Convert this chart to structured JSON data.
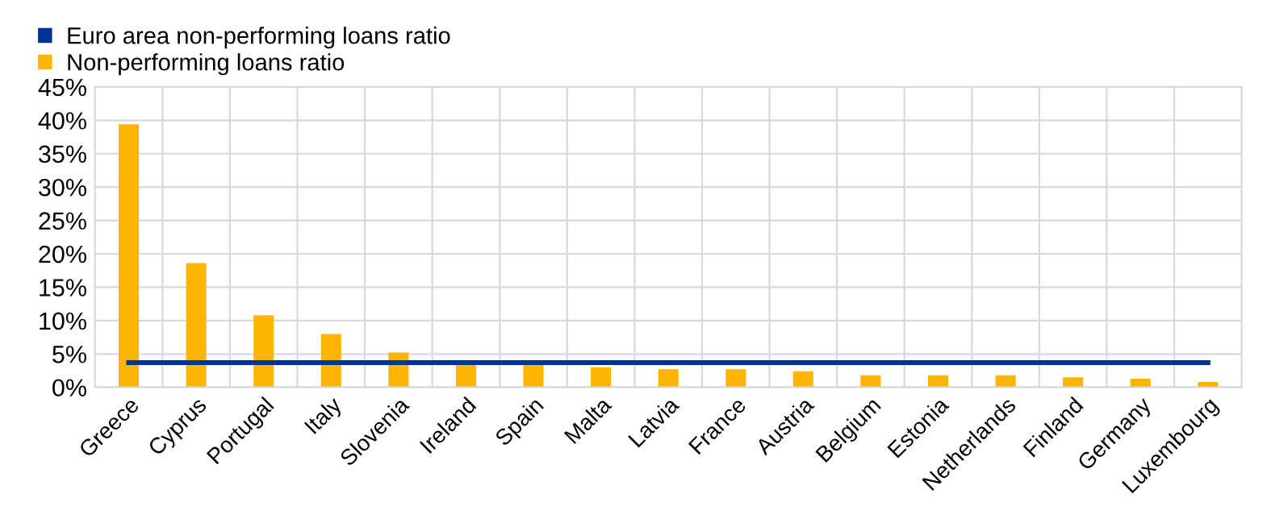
{
  "chart_data": {
    "type": "bar",
    "categories": [
      "Greece",
      "Cyprus",
      "Portugal",
      "Italy",
      "Slovenia",
      "Ireland",
      "Spain",
      "Malta",
      "Latvia",
      "France",
      "Austria",
      "Belgium",
      "Estonia",
      "Netherlands",
      "Finland",
      "Germany",
      "Luxembourg"
    ],
    "series": [
      {
        "name": "Euro area non-performing loans ratio",
        "type": "line",
        "color": "#003299",
        "values": [
          3.7,
          3.7,
          3.7,
          3.7,
          3.7,
          3.7,
          3.7,
          3.7,
          3.7,
          3.7,
          3.7,
          3.7,
          3.7,
          3.7,
          3.7,
          3.7,
          3.7
        ]
      },
      {
        "name": "Non-performing loans ratio",
        "color": "#ffb400",
        "values": [
          39.4,
          18.6,
          10.8,
          8.0,
          5.2,
          3.9,
          3.9,
          3.0,
          2.7,
          2.7,
          2.4,
          1.8,
          1.8,
          1.8,
          1.5,
          1.3,
          0.8
        ]
      }
    ],
    "ylim": [
      0,
      45
    ],
    "yticks": [
      {
        "value": 0,
        "label": "0%"
      },
      {
        "value": 5,
        "label": "5%"
      },
      {
        "value": 10,
        "label": "10%"
      },
      {
        "value": 15,
        "label": "15%"
      },
      {
        "value": 20,
        "label": "20%"
      },
      {
        "value": 25,
        "label": "25%"
      },
      {
        "value": 30,
        "label": "30%"
      },
      {
        "value": 35,
        "label": "35%"
      },
      {
        "value": 40,
        "label": "40%"
      },
      {
        "value": 45,
        "label": "45%"
      }
    ],
    "grid": true,
    "legend": "top left"
  }
}
